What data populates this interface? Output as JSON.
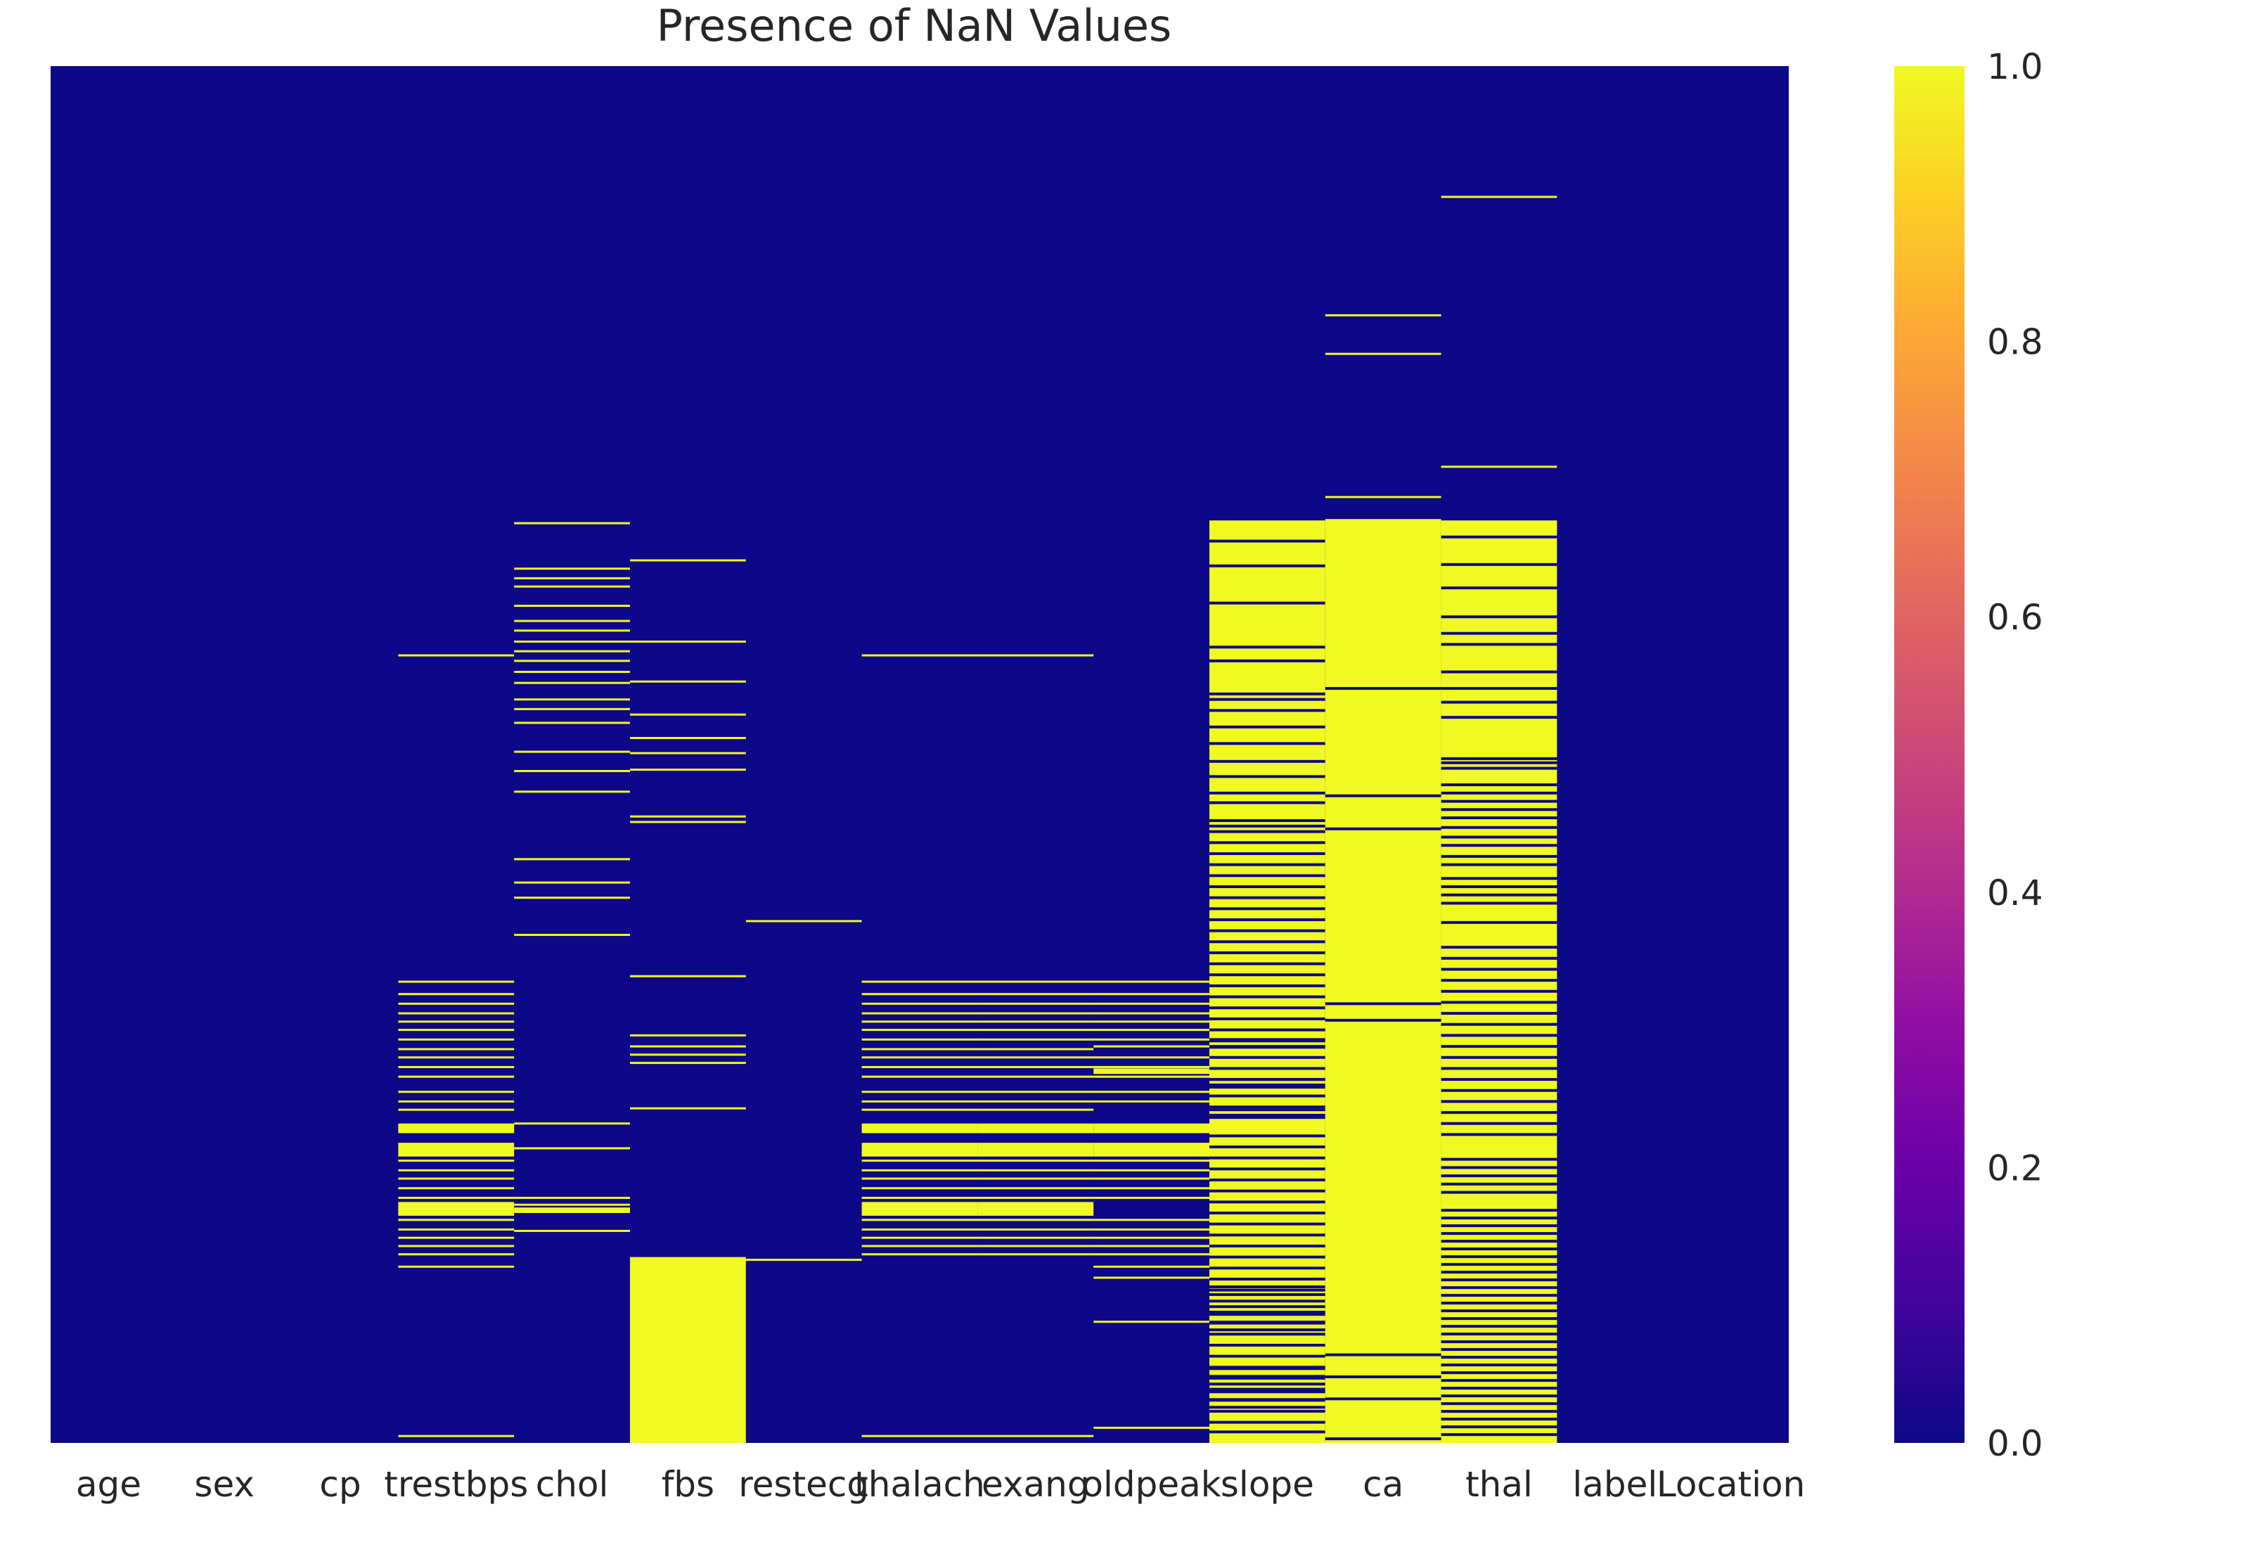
{
  "chart_data": {
    "type": "heatmap",
    "title": "Presence of NaN Values",
    "xlabel": "",
    "ylabel": "",
    "columns": [
      "age",
      "sex",
      "cp",
      "trestbps",
      "chol",
      "fbs",
      "restecg",
      "thalach",
      "exang",
      "oldpeak",
      "slope",
      "ca",
      "thal",
      "label",
      "Location"
    ],
    "value_range": [
      0,
      1
    ],
    "colormap": "plasma",
    "colors": {
      "zero": "#0d0887",
      "one": "#f0f921",
      "background": "#ffffff",
      "text": "#262626"
    },
    "colorbar_ticks": [
      "0.0",
      "0.2",
      "0.4",
      "0.6",
      "0.8",
      "1.0"
    ],
    "row_axis": "record index, top (first record) to bottom (last record), normalized 0-1",
    "nan_rows": {
      "age": [],
      "sex": [],
      "cp": [],
      "trestbps": {
        "lines": [
          0.428,
          0.665,
          0.674,
          0.681,
          0.688,
          0.694,
          0.7,
          0.707,
          0.714,
          0.72,
          0.727,
          0.734,
          0.745,
          0.752,
          0.758,
          0.795,
          0.802,
          0.808,
          0.815,
          0.822,
          0.838,
          0.845,
          0.851,
          0.857,
          0.863,
          0.872,
          0.995
        ],
        "blocks": [
          [
            0.768,
            0.775
          ],
          [
            0.782,
            0.792
          ],
          [
            0.825,
            0.835
          ]
        ]
      },
      "chol": {
        "lines": [
          0.332,
          0.365,
          0.372,
          0.378,
          0.392,
          0.403,
          0.41,
          0.418,
          0.425,
          0.432,
          0.44,
          0.448,
          0.46,
          0.467,
          0.477,
          0.498,
          0.512,
          0.527,
          0.576,
          0.593,
          0.604,
          0.631,
          0.768,
          0.786,
          0.822,
          0.827,
          0.846
        ],
        "blocks": [
          [
            0.829,
            0.833
          ]
        ]
      },
      "fbs": {
        "lines": [
          0.359,
          0.418,
          0.447,
          0.471,
          0.488,
          0.499,
          0.511,
          0.545,
          0.549,
          0.661,
          0.704,
          0.712,
          0.718,
          0.724,
          0.757
        ],
        "blocks": [
          [
            0.865,
            1.0
          ]
        ]
      },
      "restecg": {
        "lines": [
          0.621,
          0.867
        ],
        "blocks": []
      },
      "thalach": {
        "lines": [
          0.428,
          0.665,
          0.674,
          0.681,
          0.688,
          0.694,
          0.7,
          0.707,
          0.714,
          0.72,
          0.727,
          0.734,
          0.745,
          0.752,
          0.758,
          0.795,
          0.802,
          0.808,
          0.815,
          0.822,
          0.838,
          0.845,
          0.851,
          0.857,
          0.863,
          0.995
        ],
        "blocks": [
          [
            0.768,
            0.775
          ],
          [
            0.782,
            0.792
          ],
          [
            0.825,
            0.835
          ]
        ]
      },
      "exang": {
        "lines": [
          0.428,
          0.665,
          0.674,
          0.681,
          0.688,
          0.694,
          0.7,
          0.707,
          0.714,
          0.72,
          0.727,
          0.734,
          0.745,
          0.752,
          0.758,
          0.795,
          0.802,
          0.808,
          0.815,
          0.822,
          0.838,
          0.845,
          0.851,
          0.857,
          0.863,
          0.995
        ],
        "blocks": [
          [
            0.768,
            0.775
          ],
          [
            0.782,
            0.792
          ],
          [
            0.825,
            0.835
          ]
        ]
      },
      "oldpeak": {
        "lines": [
          0.665,
          0.674,
          0.681,
          0.688,
          0.694,
          0.7,
          0.707,
          0.712,
          0.72,
          0.727,
          0.734,
          0.745,
          0.752,
          0.795,
          0.802,
          0.808,
          0.815,
          0.822,
          0.838,
          0.845,
          0.851,
          0.857,
          0.863,
          0.872,
          0.88,
          0.912,
          0.989
        ],
        "blocks": [
          [
            0.728,
            0.732
          ],
          [
            0.768,
            0.775
          ],
          [
            0.782,
            0.792
          ]
        ]
      },
      "slope": {
        "fill": [
          0.33,
          1.0
        ],
        "gaps": [
          0.345,
          0.363,
          0.39,
          0.422,
          0.432,
          0.456,
          0.46,
          0.468,
          0.48,
          0.492,
          0.505,
          0.516,
          0.528,
          0.535,
          0.548,
          0.552,
          0.556,
          0.564,
          0.572,
          0.58,
          0.588,
          0.596,
          0.604,
          0.612,
          0.62,
          0.628,
          0.636,
          0.644,
          0.652,
          0.66,
          0.668,
          0.676,
          0.684,
          0.692,
          0.7,
          0.708,
          0.712,
          0.72,
          0.728,
          0.736,
          0.74,
          0.748,
          0.756,
          0.762,
          0.777,
          0.785,
          0.793,
          0.801,
          0.809,
          0.817,
          0.825,
          0.833,
          0.841,
          0.849,
          0.857,
          0.865,
          0.873,
          0.881,
          0.889,
          0.897,
          0.905,
          0.913,
          0.921,
          0.929,
          0.937,
          0.945,
          0.953,
          0.961,
          0.969,
          0.977,
          0.985,
          0.992
        ],
        "gap_blocks": [
          [
            0.706,
            0.716
          ],
          [
            0.735,
            0.745
          ],
          [
            0.757,
            0.765
          ],
          [
            0.88,
            0.895
          ],
          [
            0.9,
            0.92
          ],
          [
            0.945,
            0.975
          ]
        ]
      },
      "ca": {
        "lines": [
          0.181,
          0.209,
          0.313
        ],
        "fill": [
          0.329,
          1.0
        ],
        "gaps": [
          0.452,
          0.53,
          0.554,
          0.681,
          0.693,
          0.936,
          0.952,
          0.968,
          0.997
        ]
      },
      "thal": {
        "lines": [
          0.095,
          0.291
        ],
        "fill": [
          0.33,
          1.0
        ],
        "gaps": [
          0.342,
          0.362,
          0.379,
          0.4,
          0.412,
          0.42,
          0.44,
          0.452,
          0.462,
          0.473,
          0.503,
          0.506,
          0.51,
          0.522,
          0.528,
          0.534,
          0.54,
          0.546,
          0.553,
          0.56,
          0.566,
          0.574,
          0.58,
          0.59,
          0.596,
          0.602,
          0.608,
          0.622,
          0.64,
          0.648,
          0.656,
          0.664,
          0.672,
          0.68,
          0.688,
          0.696,
          0.704,
          0.712,
          0.72,
          0.728,
          0.736,
          0.744,
          0.752,
          0.76,
          0.768,
          0.776,
          0.794,
          0.8,
          0.806,
          0.812,
          0.818
        ],
        "gap_blocks": [
          [
            0.83,
            0.995
          ]
        ]
      },
      "label": [],
      "Location": []
    }
  }
}
